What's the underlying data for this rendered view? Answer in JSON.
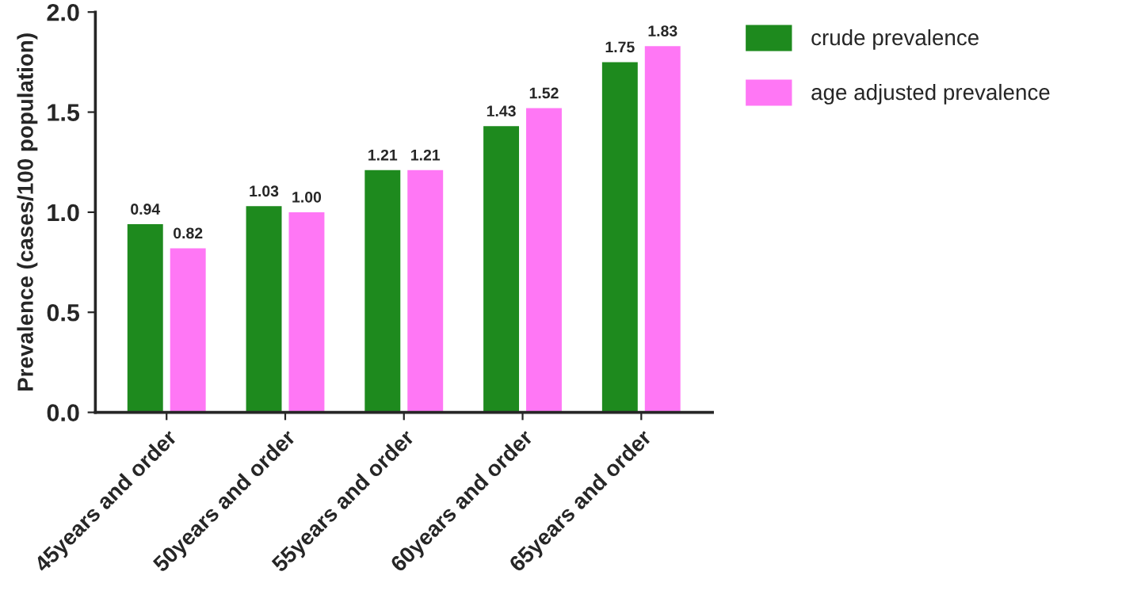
{
  "chart_data": {
    "type": "bar",
    "ylabel": "Prevalence (cases/100 population)",
    "categories": [
      "45years and order",
      "50years and order",
      "55years and order",
      "60years and order",
      "65years and order"
    ],
    "series": [
      {
        "name": "crude prevalence",
        "color": "#1e8a1e",
        "values": [
          0.94,
          1.03,
          1.21,
          1.43,
          1.75
        ],
        "value_labels": [
          "0.94",
          "1.03",
          "1.21",
          "1.43",
          "1.75"
        ]
      },
      {
        "name": "age adjusted prevalence",
        "color": "#ff77f5",
        "values": [
          0.82,
          1.0,
          1.21,
          1.52,
          1.83
        ],
        "value_labels": [
          "0.82",
          "1.00",
          "1.21",
          "1.52",
          "1.83"
        ]
      }
    ],
    "ylim": [
      0,
      2.0
    ],
    "yticks": [
      {
        "value": 0,
        "label": "0.0"
      },
      {
        "value": 0.5,
        "label": "0.5"
      },
      {
        "value": 1.0,
        "label": "1.0"
      },
      {
        "value": 1.5,
        "label": "1.5"
      },
      {
        "value": 2.0,
        "label": "2.0"
      }
    ],
    "grid": false,
    "legend": "top right"
  }
}
